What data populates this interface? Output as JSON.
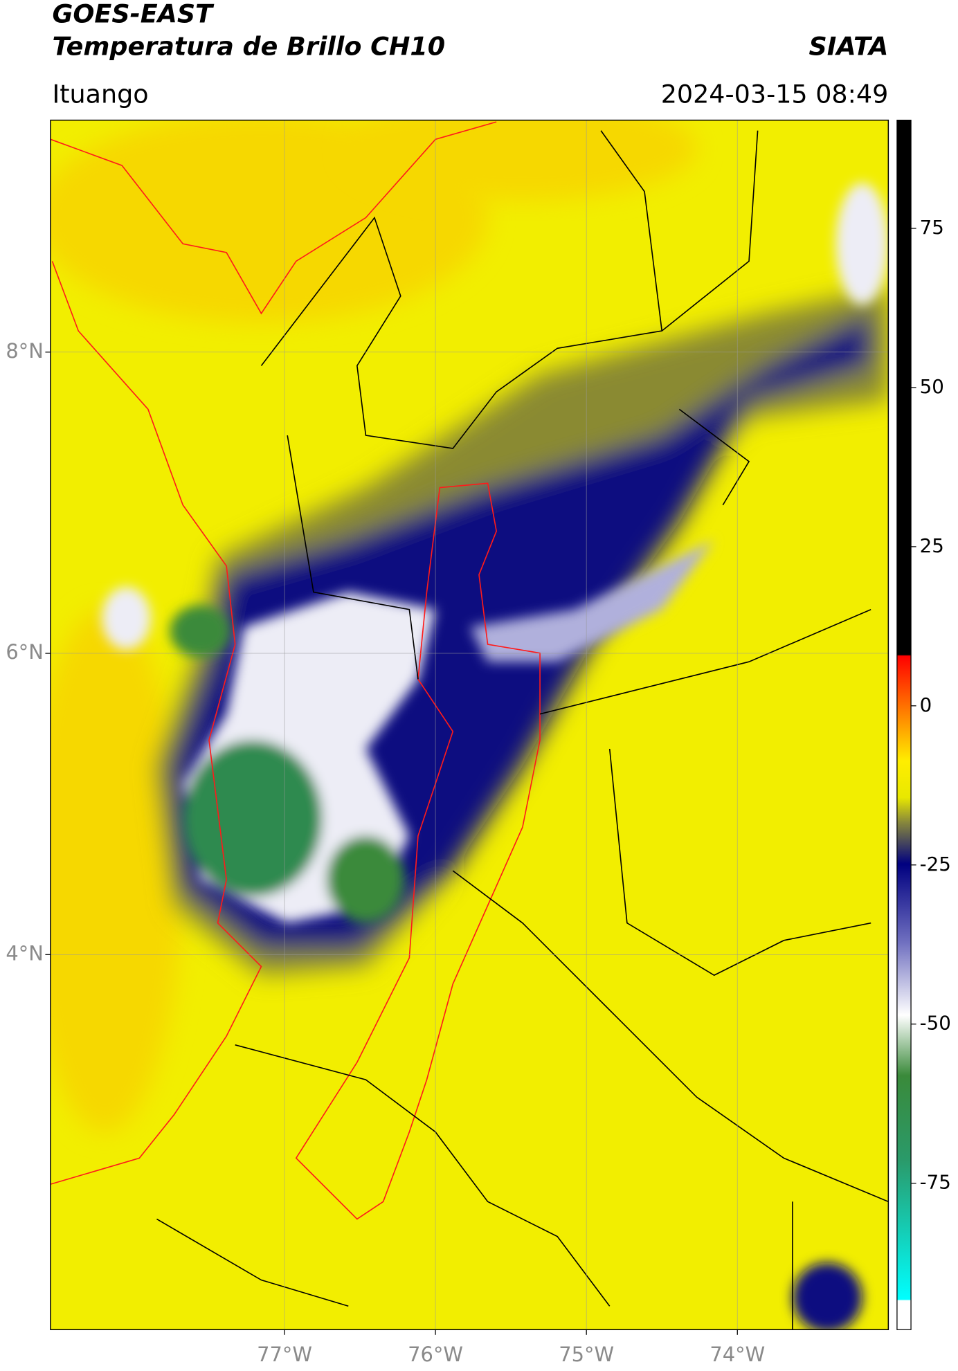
{
  "header": {
    "title": "GOES-EAST",
    "subtitle": "Temperatura de Brillo CH10",
    "source": "SIATA",
    "location": "Ituango",
    "datetime": "2024-03-15 08:49"
  },
  "map": {
    "xlim": [
      -78.55,
      -73.0
    ],
    "ylim": [
      1.51,
      9.54
    ],
    "xticks": [
      {
        "value": -77,
        "label": "77°W"
      },
      {
        "value": -76,
        "label": "76°W"
      },
      {
        "value": -75,
        "label": "75°W"
      },
      {
        "value": -74,
        "label": "74°W"
      }
    ],
    "yticks": [
      {
        "value": 8,
        "label": "8°N"
      },
      {
        "value": 6,
        "label": "6°N"
      },
      {
        "value": 4,
        "label": "4°N"
      }
    ]
  },
  "colorbar": {
    "lim": [
      -98,
      92
    ],
    "ticks": [
      75,
      50,
      25,
      0,
      -25,
      -50,
      -75
    ]
  }
}
